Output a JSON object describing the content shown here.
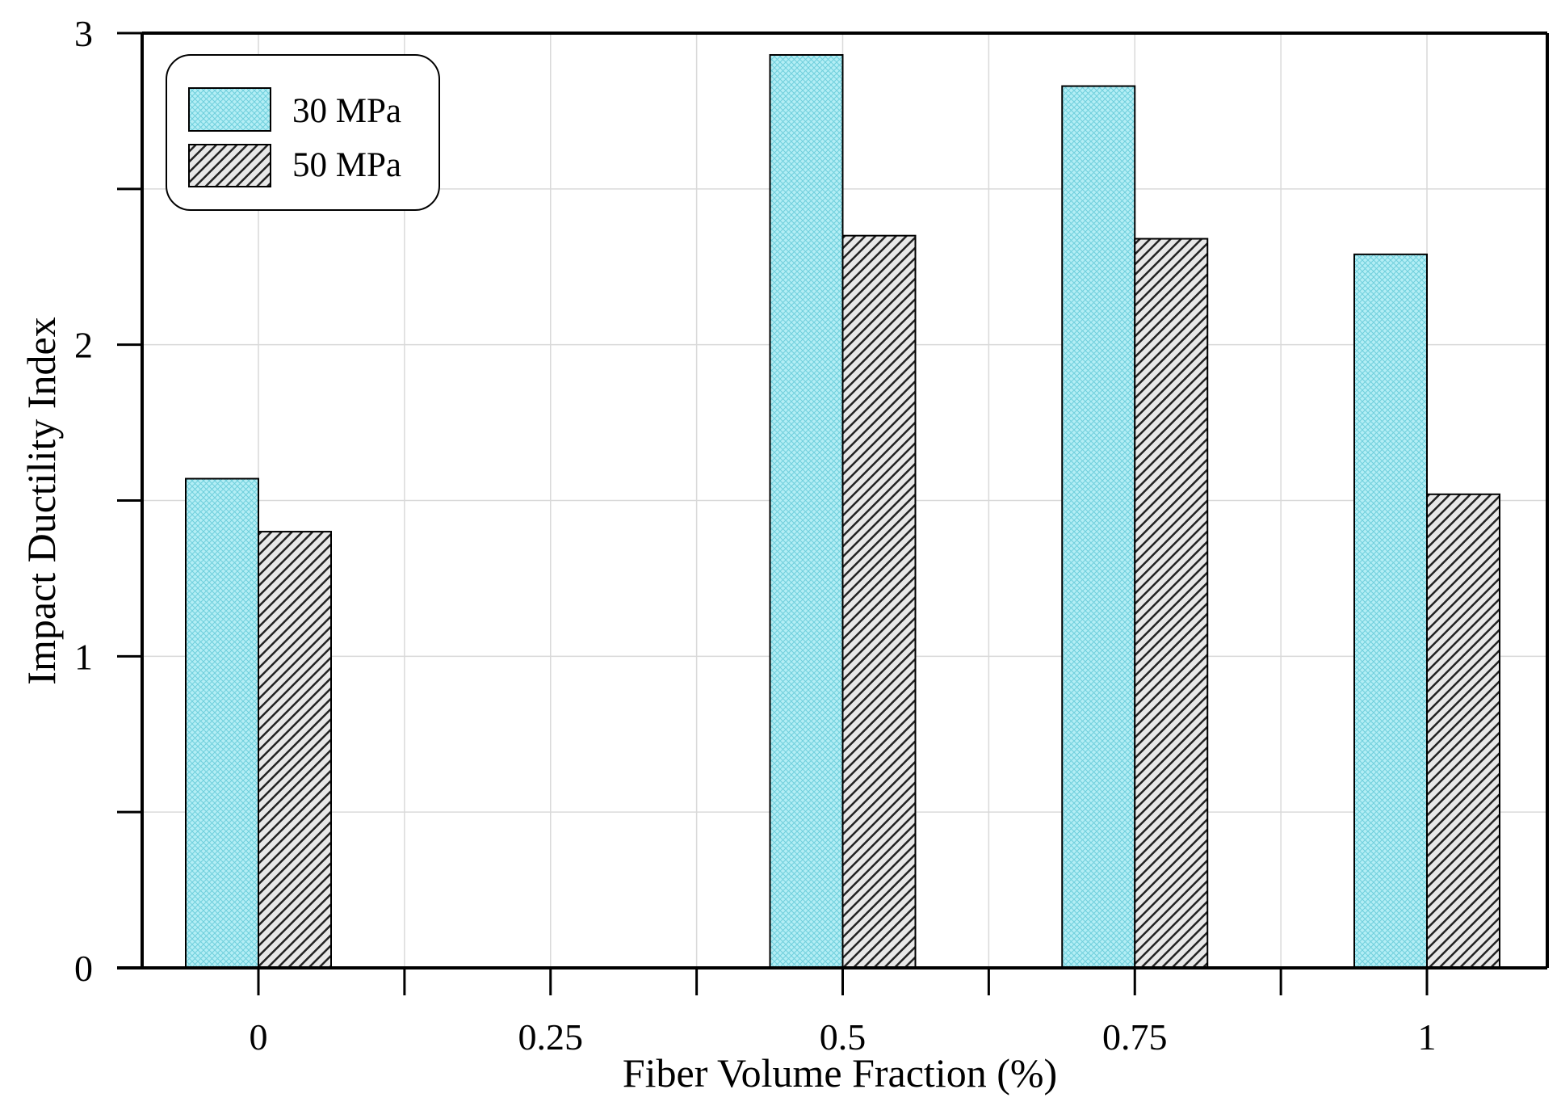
{
  "chart_data": {
    "type": "bar",
    "title": "",
    "xlabel": "Fiber Volume Fraction (%)",
    "ylabel": "Impact Ductility Index",
    "categories": [
      "0",
      "0.25",
      "0.5",
      "0.75",
      "1"
    ],
    "series": [
      {
        "name": "30 MPa",
        "values": [
          1.57,
          null,
          2.93,
          2.83,
          2.29
        ],
        "color": "#aeeef5",
        "pattern": "crosshatch"
      },
      {
        "name": "50 MPa",
        "values": [
          1.4,
          null,
          2.35,
          2.34,
          1.52
        ],
        "color": "#d0d0d0",
        "pattern": "diagonal"
      }
    ],
    "ylim": [
      0,
      3
    ],
    "yticks": [
      0,
      1,
      2,
      3
    ],
    "y_tick_labels": [
      "0",
      "1",
      "2",
      "3"
    ],
    "y_minor_ticks": [
      0.5,
      1.5,
      2.5
    ],
    "grid": true,
    "legend": {
      "position": "top-left",
      "entries": [
        "30 MPa",
        "50 MPa"
      ]
    }
  }
}
